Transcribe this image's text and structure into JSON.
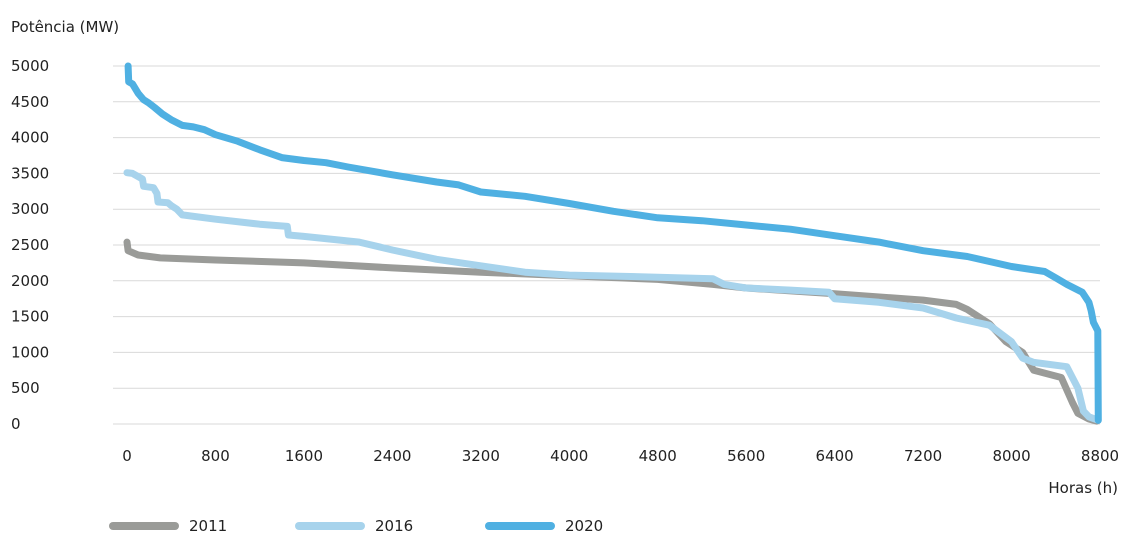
{
  "chart_data": {
    "type": "line",
    "ylabel": "Potência (MW)",
    "xlabel": "Horas (h)",
    "xlim": [
      0,
      8800
    ],
    "ylim": [
      0,
      5000
    ],
    "xticks": [
      0,
      800,
      1600,
      2400,
      3200,
      4000,
      4800,
      5600,
      6400,
      7200,
      8000,
      8800
    ],
    "yticks": [
      0,
      500,
      1000,
      1500,
      2000,
      2500,
      3000,
      3500,
      4000,
      4500,
      5000
    ],
    "grid": true,
    "legend": "bottom-left",
    "series": [
      {
        "name": "2011",
        "color": "#9a9b98",
        "points": [
          [
            0,
            2540
          ],
          [
            10,
            2420
          ],
          [
            100,
            2360
          ],
          [
            300,
            2320
          ],
          [
            800,
            2290
          ],
          [
            1600,
            2250
          ],
          [
            2400,
            2180
          ],
          [
            3200,
            2120
          ],
          [
            4000,
            2070
          ],
          [
            4800,
            2020
          ],
          [
            5300,
            1950
          ],
          [
            5600,
            1900
          ],
          [
            6400,
            1820
          ],
          [
            7200,
            1730
          ],
          [
            7500,
            1670
          ],
          [
            7600,
            1600
          ],
          [
            7800,
            1400
          ],
          [
            7950,
            1150
          ],
          [
            8100,
            1000
          ],
          [
            8200,
            750
          ],
          [
            8450,
            650
          ],
          [
            8550,
            300
          ],
          [
            8600,
            150
          ],
          [
            8700,
            70
          ],
          [
            8770,
            40
          ]
        ]
      },
      {
        "name": "2016",
        "color": "#a7d3ec",
        "points": [
          [
            0,
            3510
          ],
          [
            50,
            3500
          ],
          [
            140,
            3420
          ],
          [
            150,
            3320
          ],
          [
            240,
            3300
          ],
          [
            270,
            3220
          ],
          [
            280,
            3100
          ],
          [
            370,
            3090
          ],
          [
            400,
            3050
          ],
          [
            450,
            3000
          ],
          [
            500,
            2920
          ],
          [
            800,
            2860
          ],
          [
            1200,
            2790
          ],
          [
            1450,
            2760
          ],
          [
            1460,
            2640
          ],
          [
            1600,
            2620
          ],
          [
            2100,
            2540
          ],
          [
            2400,
            2430
          ],
          [
            2800,
            2300
          ],
          [
            3200,
            2210
          ],
          [
            3600,
            2120
          ],
          [
            4000,
            2080
          ],
          [
            4800,
            2050
          ],
          [
            5300,
            2030
          ],
          [
            5400,
            1950
          ],
          [
            5600,
            1900
          ],
          [
            6000,
            1870
          ],
          [
            6350,
            1840
          ],
          [
            6400,
            1750
          ],
          [
            6800,
            1700
          ],
          [
            7200,
            1620
          ],
          [
            7500,
            1480
          ],
          [
            7800,
            1380
          ],
          [
            8000,
            1150
          ],
          [
            8100,
            920
          ],
          [
            8200,
            860
          ],
          [
            8500,
            800
          ],
          [
            8600,
            500
          ],
          [
            8650,
            180
          ],
          [
            8700,
            100
          ],
          [
            8770,
            60
          ]
        ]
      },
      {
        "name": "2020",
        "color": "#4fb0e2",
        "points": [
          [
            10,
            5000
          ],
          [
            15,
            4780
          ],
          [
            50,
            4750
          ],
          [
            100,
            4620
          ],
          [
            150,
            4530
          ],
          [
            200,
            4480
          ],
          [
            250,
            4420
          ],
          [
            320,
            4330
          ],
          [
            400,
            4250
          ],
          [
            500,
            4170
          ],
          [
            600,
            4150
          ],
          [
            700,
            4110
          ],
          [
            800,
            4040
          ],
          [
            1000,
            3950
          ],
          [
            1200,
            3830
          ],
          [
            1400,
            3720
          ],
          [
            1600,
            3680
          ],
          [
            1800,
            3650
          ],
          [
            2000,
            3590
          ],
          [
            2400,
            3480
          ],
          [
            2800,
            3380
          ],
          [
            3000,
            3340
          ],
          [
            3200,
            3240
          ],
          [
            3600,
            3180
          ],
          [
            4000,
            3080
          ],
          [
            4400,
            2970
          ],
          [
            4800,
            2880
          ],
          [
            5200,
            2840
          ],
          [
            5600,
            2780
          ],
          [
            6000,
            2720
          ],
          [
            6400,
            2630
          ],
          [
            6800,
            2540
          ],
          [
            7200,
            2420
          ],
          [
            7600,
            2340
          ],
          [
            8000,
            2200
          ],
          [
            8300,
            2130
          ],
          [
            8400,
            2040
          ],
          [
            8500,
            1950
          ],
          [
            8640,
            1840
          ],
          [
            8700,
            1700
          ],
          [
            8720,
            1580
          ],
          [
            8740,
            1420
          ],
          [
            8780,
            1300
          ],
          [
            8785,
            50
          ]
        ]
      }
    ]
  }
}
